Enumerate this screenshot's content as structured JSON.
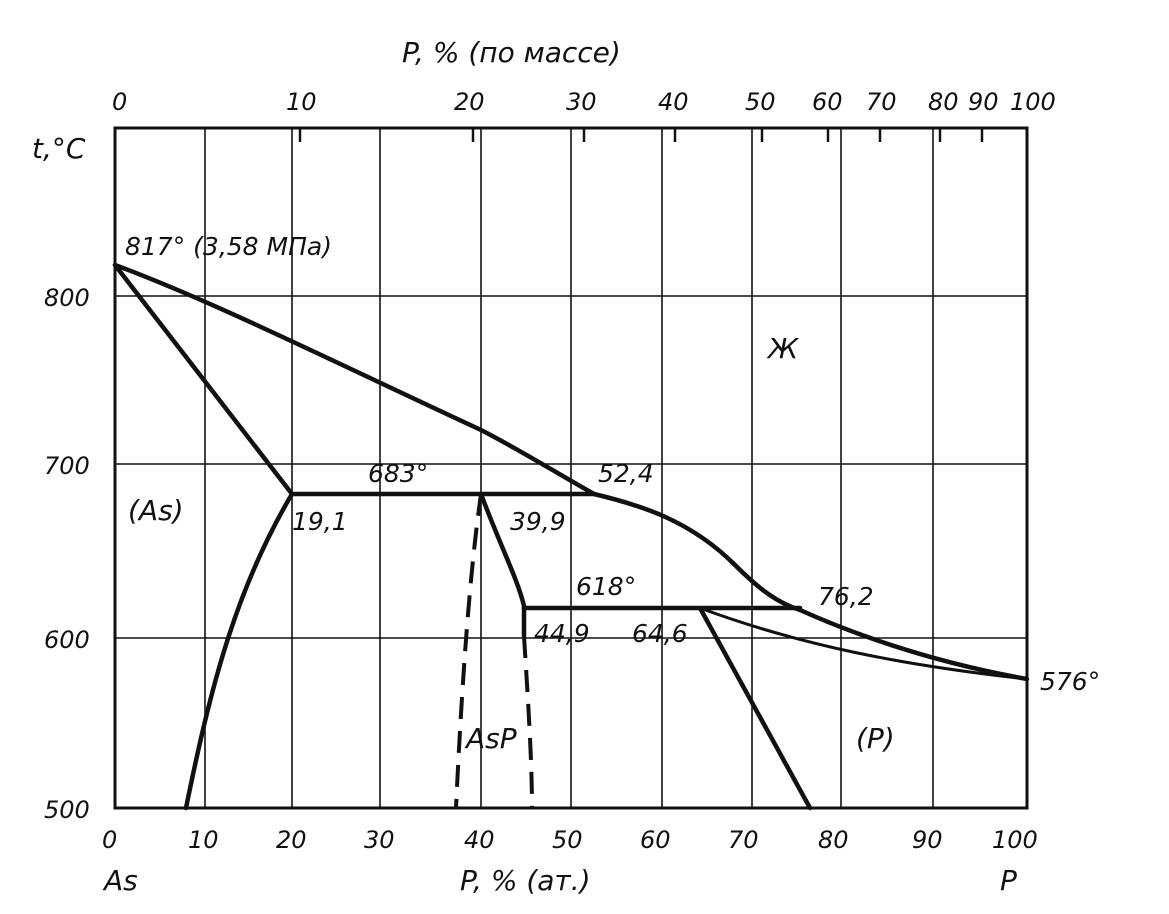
{
  "diagram": {
    "top_axis_title": "P, % (по массе)",
    "top_ticks": [
      "0",
      "10",
      "20",
      "30",
      "40",
      "50",
      "60",
      "70",
      "80",
      "90",
      "100"
    ],
    "y_axis_title": "t,°C",
    "y_ticks": [
      "800",
      "700",
      "600",
      "500"
    ],
    "bottom_ticks": [
      "0",
      "10",
      "20",
      "30",
      "40",
      "50",
      "60",
      "70",
      "80",
      "90",
      "100"
    ],
    "bottom_axis_title": "P, % (ат.)",
    "left_element": "As",
    "right_element": "P",
    "annotations": {
      "as_melting": "817° (3,58 МПа)",
      "p_melting": "576°",
      "eutectic_temp": "683°",
      "eutectic_left": "19,1",
      "eutectic_mid": "39,9",
      "eutectic_liquid": "52,4",
      "peritectic_temp": "618°",
      "peritectic_left": "44,9",
      "peritectic_mid": "64,6",
      "peritectic_liquid": "76,2"
    },
    "regions": {
      "liquid": "Ж",
      "as_solid": "(As)",
      "compound": "AsP",
      "p_solid": "(P)"
    }
  },
  "chart_data": {
    "type": "phase-diagram",
    "x_range": [
      0,
      100
    ],
    "y_range": [
      500,
      900
    ],
    "key_points": [
      {
        "label": "817° (3,58 МПа)",
        "x": 0,
        "t": 817
      },
      {
        "label": "19,1",
        "x": 19.1,
        "t": 683
      },
      {
        "label": "39,9",
        "x": 39.9,
        "t": 683
      },
      {
        "label": "52,4",
        "x": 52.4,
        "t": 683
      },
      {
        "label": "44,9",
        "x": 44.9,
        "t": 618
      },
      {
        "label": "64,6",
        "x": 64.6,
        "t": 618
      },
      {
        "label": "76,2",
        "x": 76.2,
        "t": 618
      },
      {
        "label": "576°",
        "x": 100,
        "t": 576
      }
    ]
  }
}
